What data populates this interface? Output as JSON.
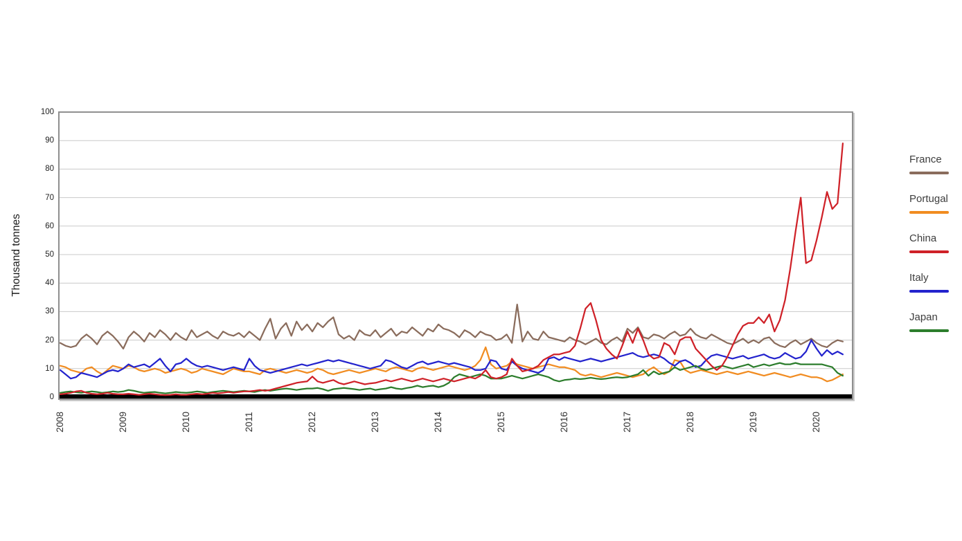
{
  "chart_data": {
    "type": "line",
    "title": "",
    "ylabel": "Thousand tonnes",
    "xlabel": "",
    "ylim": [
      0,
      100
    ],
    "y_ticks": [
      0,
      10,
      20,
      30,
      40,
      50,
      60,
      70,
      80,
      90,
      100
    ],
    "x_tick_years": [
      2008,
      2009,
      2010,
      2011,
      2012,
      2013,
      2014,
      2015,
      2016,
      2017,
      2018,
      2019,
      2020
    ],
    "x_unit": "month",
    "x_start": "2008-01",
    "x_end": "2020-06",
    "grid": "horizontal-only",
    "legend_position": "right",
    "series": [
      {
        "name": "France",
        "color": "#8a6c5c",
        "values": [
          19,
          18,
          17.5,
          18,
          20.5,
          22,
          20.5,
          18.5,
          21.5,
          23,
          21.5,
          19.5,
          17,
          21,
          23,
          21.5,
          19.5,
          22.5,
          21,
          23.5,
          22,
          20,
          22.5,
          21,
          20,
          23.5,
          21,
          22,
          23,
          21.5,
          20.5,
          23,
          22,
          21.5,
          22.5,
          21,
          23,
          21.5,
          20,
          24,
          27.5,
          20.5,
          24,
          26,
          21.5,
          26.5,
          23.5,
          25.5,
          23,
          26,
          24.5,
          26.5,
          28,
          22,
          20.5,
          21.5,
          20,
          23.5,
          22,
          21.5,
          23.5,
          21,
          22.5,
          24,
          21.5,
          23,
          22.5,
          24.5,
          23,
          21.5,
          24,
          23,
          25.5,
          24,
          23.5,
          22.5,
          21,
          23.5,
          22.5,
          21,
          23,
          22,
          21.5,
          20,
          20.5,
          22,
          19,
          32.5,
          19.5,
          23,
          20.5,
          20,
          23,
          21,
          20.5,
          20,
          19.5,
          21,
          20,
          19.5,
          18.5,
          19.5,
          20.5,
          19,
          18.5,
          20,
          21,
          19.5,
          24,
          22.5,
          24.5,
          21,
          20.5,
          22,
          21.5,
          20.5,
          22,
          23,
          21.5,
          22,
          24,
          22,
          21,
          20.5,
          22,
          21,
          20,
          19,
          18.5,
          19.5,
          20.5,
          19,
          20,
          19,
          20.5,
          21,
          19,
          18,
          17.5,
          19,
          20,
          18.5,
          19.5,
          20.5,
          19,
          18,
          17.5,
          19,
          20,
          19.5
        ]
      },
      {
        "name": "Portugal",
        "color": "#f18c21",
        "values": [
          11,
          10.5,
          9.5,
          9,
          8.5,
          10,
          10.5,
          9,
          8,
          9.5,
          11,
          10.5,
          10,
          11,
          10.5,
          9.5,
          9,
          9.5,
          10,
          9.5,
          8.5,
          9,
          9.5,
          10,
          9.5,
          8.5,
          9,
          10,
          9.5,
          9,
          8.5,
          8,
          9,
          10,
          9.5,
          9,
          9,
          8.5,
          8,
          9.5,
          10,
          9.5,
          9,
          8.5,
          9,
          9.5,
          9,
          8.5,
          9,
          10,
          9.5,
          8.5,
          8,
          8.5,
          9,
          9.5,
          9,
          8.5,
          9,
          9.5,
          10,
          9.5,
          9,
          10,
          10.5,
          10,
          9.5,
          9,
          10,
          10.5,
          10,
          9.5,
          10,
          10.5,
          11,
          10.5,
          10,
          9.5,
          10,
          11,
          13,
          17.5,
          11.5,
          10,
          10.5,
          11,
          12.5,
          11.5,
          11,
          10.5,
          10,
          10.5,
          11,
          11.5,
          11,
          10.5,
          10.5,
          10,
          9.5,
          8,
          7.5,
          8,
          7.5,
          7,
          7.5,
          8,
          8.5,
          8,
          7.5,
          7,
          7.5,
          8,
          9.5,
          10.5,
          9,
          8,
          9,
          13,
          12.5,
          9.5,
          8.5,
          9,
          9.5,
          9,
          8.5,
          8,
          8.5,
          9,
          8.5,
          8,
          8.5,
          9,
          8.5,
          8,
          7.5,
          8,
          8.5,
          8,
          7.5,
          7,
          7.5,
          8,
          7.5,
          7,
          7,
          6.5,
          5.5,
          6,
          7,
          8
        ]
      },
      {
        "name": "China",
        "color": "#cf2128",
        "values": [
          1,
          1.2,
          1.5,
          2,
          2.2,
          1.5,
          1.2,
          1,
          1.2,
          1.5,
          1.2,
          1,
          1,
          1.2,
          1,
          0.8,
          1,
          1.2,
          1,
          0.8,
          0.7,
          0.8,
          1,
          0.8,
          0.8,
          1,
          1.2,
          1,
          1.2,
          1.5,
          1.3,
          1.5,
          1.8,
          1.5,
          1.8,
          2,
          2,
          2.2,
          2.5,
          2.2,
          2.5,
          3,
          3.5,
          4,
          4.5,
          5,
          5.3,
          5.5,
          7.2,
          5.5,
          5,
          5.5,
          6,
          5,
          4.5,
          5,
          5.5,
          5,
          4.5,
          4.8,
          5,
          5.5,
          6,
          5.5,
          6,
          6.5,
          6,
          5.5,
          6,
          6.5,
          6,
          5.5,
          6,
          6.5,
          6,
          5.5,
          6,
          6.5,
          7,
          6.5,
          7.5,
          9.5,
          7,
          6.5,
          7,
          8,
          13.5,
          11,
          9,
          9.5,
          10,
          11,
          13,
          14,
          15,
          15,
          15.5,
          16,
          18,
          24,
          31,
          33,
          27,
          20,
          17,
          15,
          13.5,
          18,
          23,
          19,
          24,
          20,
          15,
          13.5,
          14,
          19,
          18,
          15,
          20,
          21,
          21,
          17,
          15,
          13,
          11,
          9.5,
          11,
          14,
          18,
          22,
          25,
          26,
          26,
          28,
          26,
          29,
          23,
          27,
          34,
          45,
          58,
          70,
          47,
          48,
          55,
          63,
          72,
          66,
          68,
          89
        ]
      },
      {
        "name": "Italy",
        "color": "#2323cd",
        "values": [
          9.5,
          8,
          6.5,
          7,
          8.5,
          8,
          7.5,
          7,
          8,
          9,
          9.5,
          9,
          10,
          11.5,
          10.5,
          11,
          11.5,
          10.5,
          12,
          13.5,
          11,
          9,
          11.5,
          12,
          13.5,
          12,
          11,
          10.5,
          11,
          10.5,
          10,
          9.5,
          10,
          10.5,
          10,
          9.5,
          13.5,
          11,
          9.5,
          9,
          8.5,
          9,
          9.5,
          10,
          10.5,
          11,
          11.5,
          11,
          11.5,
          12,
          12.5,
          13,
          12.5,
          13,
          12.5,
          12,
          11.5,
          11,
          10.5,
          10,
          10.5,
          11,
          13,
          12.5,
          11.5,
          10.5,
          10,
          11,
          12,
          12.5,
          11.5,
          12,
          12.5,
          12,
          11.5,
          12,
          11.5,
          11,
          10.5,
          9.5,
          9.5,
          10,
          13,
          12.5,
          10,
          9.5,
          12.5,
          11,
          10,
          9.5,
          9,
          8.5,
          9.5,
          13.5,
          14,
          13,
          14,
          13.5,
          13,
          12.5,
          13,
          13.5,
          13,
          12.5,
          13,
          13.5,
          14,
          14.5,
          15,
          15.5,
          14.5,
          14,
          14.5,
          15,
          14.5,
          13.5,
          12,
          11,
          12.5,
          13,
          12,
          10.5,
          11,
          13,
          14.5,
          15,
          14.5,
          14,
          13.5,
          14,
          14.5,
          13.5,
          14,
          14.5,
          15,
          14,
          13.5,
          14,
          15.5,
          14.5,
          13.5,
          14,
          16,
          20,
          17,
          14.5,
          16.5,
          15,
          16,
          15
        ]
      },
      {
        "name": "Japan",
        "color": "#2c7d2c",
        "values": [
          1.5,
          1.8,
          2,
          1.7,
          1.5,
          1.8,
          2,
          1.8,
          1.5,
          1.7,
          2,
          1.8,
          2,
          2.5,
          2.2,
          1.8,
          1.5,
          1.7,
          1.8,
          1.5,
          1.3,
          1.5,
          1.8,
          1.6,
          1.5,
          1.7,
          2,
          1.8,
          1.5,
          1.8,
          2,
          2.2,
          2,
          1.8,
          2,
          2.2,
          2,
          1.8,
          2.2,
          2.5,
          2.2,
          2.5,
          2.8,
          3,
          2.8,
          2.5,
          2.8,
          3,
          3,
          3.2,
          2.8,
          2.2,
          2.8,
          3,
          3.2,
          3,
          2.8,
          2.5,
          2.8,
          3,
          2.5,
          2.8,
          3,
          3.5,
          3,
          2.8,
          3.2,
          3.5,
          4,
          3.5,
          3.8,
          4,
          3.5,
          4,
          5,
          7,
          8,
          7.5,
          7,
          7.5,
          8,
          7.5,
          6.5,
          6.5,
          6.5,
          7,
          7.5,
          7,
          6.5,
          7,
          7.5,
          8,
          7.5,
          7,
          6,
          5.5,
          6,
          6.2,
          6.5,
          6.3,
          6.5,
          6.8,
          6.5,
          6.3,
          6.5,
          6.8,
          7,
          6.8,
          7,
          7.5,
          8,
          9.5,
          7.5,
          9,
          8,
          8.5,
          9,
          10.5,
          9.5,
          10,
          10.5,
          11,
          10,
          9.5,
          10,
          10.5,
          11,
          10.5,
          10,
          10.5,
          11,
          11.5,
          10.5,
          11,
          11.5,
          11,
          11.5,
          12,
          11.5,
          11.5,
          12,
          11.5,
          11.5,
          11.5,
          11.5,
          11.5,
          11,
          10.5,
          8.5,
          7.5
        ]
      }
    ]
  },
  "legend": {
    "items": [
      {
        "label": "France",
        "color": "#8a6c5c"
      },
      {
        "label": "Portugal",
        "color": "#f18c21"
      },
      {
        "label": "China",
        "color": "#cf2128"
      },
      {
        "label": "Italy",
        "color": "#2323cd"
      },
      {
        "label": "Japan",
        "color": "#2c7d2c"
      }
    ]
  },
  "colors": {
    "grid": "#c9c9c9",
    "plot_border": "#8f8f8f",
    "axis_bar": "#000000",
    "text": "#333333"
  }
}
